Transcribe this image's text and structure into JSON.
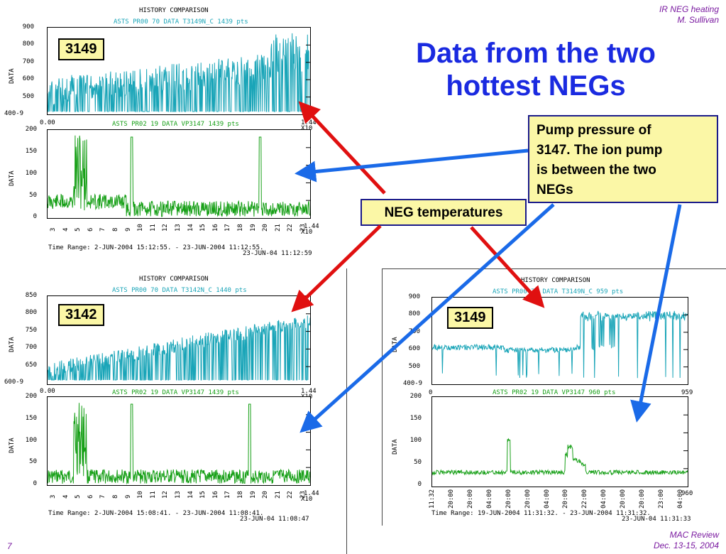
{
  "header": {
    "line1": "IR NEG heating",
    "line2": "M. Sullivan"
  },
  "footer": {
    "page": "7",
    "line1": "MAC Review",
    "line2": "Dec. 13-15, 2004"
  },
  "slide_title": {
    "line1": "Data from the two",
    "line2": "hottest NEGs"
  },
  "callouts": {
    "pump": [
      "Pump pressure of",
      "3147. The ion pump",
      "is between the two",
      "NEGs"
    ],
    "neg": "NEG temperatures"
  },
  "colors": {
    "title": "#1a2ae0",
    "cyan": "#1aa5b8",
    "green": "#18a018",
    "arrow_red": "#e01010",
    "arrow_blue": "#1a6ae8",
    "callout_bg": "#fbf7a6"
  },
  "panels": [
    {
      "id_label": "3149",
      "hist_title": "HISTORY COMPARISON",
      "top_series": "ASTS PR00 70 DATA T3149N_C 1439 pts",
      "bot_series": "ASTS PR02 19 DATA VP3147 1439 pts",
      "top_yticks": [
        "900",
        "800",
        "700",
        "600",
        "500",
        "400-9"
      ],
      "bot_yticks": [
        "200",
        "150",
        "100",
        "50",
        "0"
      ],
      "ylabel": "DATA",
      "top_xstart": "0.00",
      "top_xend": "1.44",
      "top_xmult": "X10",
      "x_end": "1.44",
      "x_mult": "X10",
      "xtick_labels": [
        "3",
        "4",
        "5",
        "6",
        "7",
        "8",
        "9",
        "10",
        "11",
        "12",
        "13",
        "14",
        "15",
        "16",
        "17",
        "18",
        "19",
        "20",
        "21",
        "22",
        "23"
      ],
      "time_range": "Time Range:  2-JUN-2004 15:12:55. - 23-JUN-2004 11:12:55.",
      "time_stamp": "23-JUN-04 11:12:59"
    },
    {
      "id_label": "3142",
      "hist_title": "HISTORY COMPARISON",
      "top_series": "ASTS PR00 70 DATA T3142N_C 1440 pts",
      "bot_series": "ASTS PR02 19 DATA VP3147 1439 pts",
      "top_yticks": [
        "850",
        "800",
        "750",
        "700",
        "650",
        "600-9"
      ],
      "bot_yticks": [
        "200",
        "150",
        "100",
        "50",
        "0"
      ],
      "ylabel": "DATA",
      "top_xstart": "0.00",
      "top_xend": "1.44",
      "top_xmult": "X10",
      "x_end": "1.44",
      "x_mult": "X10",
      "xtick_labels": [
        "3",
        "4",
        "5",
        "6",
        "7",
        "8",
        "9",
        "10",
        "11",
        "12",
        "13",
        "14",
        "15",
        "16",
        "17",
        "18",
        "19",
        "20",
        "21",
        "22",
        "23"
      ],
      "time_range": "Time Range:  2-JUN-2004 15:08:41. - 23-JUN-2004 11:08:41.",
      "time_stamp": "23-JUN-04 11:08:47"
    },
    {
      "id_label": "3149",
      "hist_title": "HISTORY COMPARISON",
      "top_series": "ASTS PR00 70 DATA T3149N_C 959 pts",
      "bot_series": "ASTS PR02 19 DATA VP3147 960 pts",
      "top_yticks": [
        "900",
        "800",
        "700",
        "600",
        "500",
        "400-9"
      ],
      "bot_yticks": [
        "200",
        "150",
        "100",
        "50",
        "0"
      ],
      "ylabel": "DATA",
      "top_xstart": "0",
      "top_xend": "959",
      "x_end": "960",
      "xtick_labels": [
        "11:32",
        "20:00",
        "20:00",
        "04:00",
        "20:00",
        "20:00",
        "04:00",
        "20:00",
        "22:00",
        "04:00",
        "20:00",
        "20:00",
        "23:00",
        "04:00"
      ],
      "time_range": "Time Range: 19-JUN-2004 11:31:32. - 23-JUN-2004 11:31:32.",
      "time_stamp": "23-JUN-04 11:31:33"
    }
  ],
  "chart_data": [
    {
      "type": "line",
      "title": "HISTORY COMPARISON",
      "ylabel": "DATA",
      "series": [
        {
          "name": "ASTS PR00 70 DATA T3149N_C",
          "color": "#1aa5b8",
          "ylim": [
            400,
            900
          ]
        },
        {
          "name": "ASTS PR02 19 DATA VP3147",
          "color": "#18a018",
          "ylim": [
            0,
            200
          ]
        }
      ]
    },
    {
      "type": "line",
      "title": "HISTORY COMPARISON",
      "ylabel": "DATA",
      "series": [
        {
          "name": "ASTS PR00 70 DATA T3142N_C",
          "color": "#1aa5b8",
          "ylim": [
            600,
            850
          ]
        },
        {
          "name": "ASTS PR02 19 DATA VP3147",
          "color": "#18a018",
          "ylim": [
            0,
            200
          ]
        }
      ]
    },
    {
      "type": "line",
      "title": "HISTORY COMPARISON",
      "ylabel": "DATA",
      "series": [
        {
          "name": "ASTS PR00 70 DATA T3149N_C",
          "color": "#1aa5b8",
          "ylim": [
            400,
            900
          ]
        },
        {
          "name": "ASTS PR02 19 DATA VP3147",
          "color": "#18a018",
          "ylim": [
            0,
            200
          ]
        }
      ]
    }
  ]
}
